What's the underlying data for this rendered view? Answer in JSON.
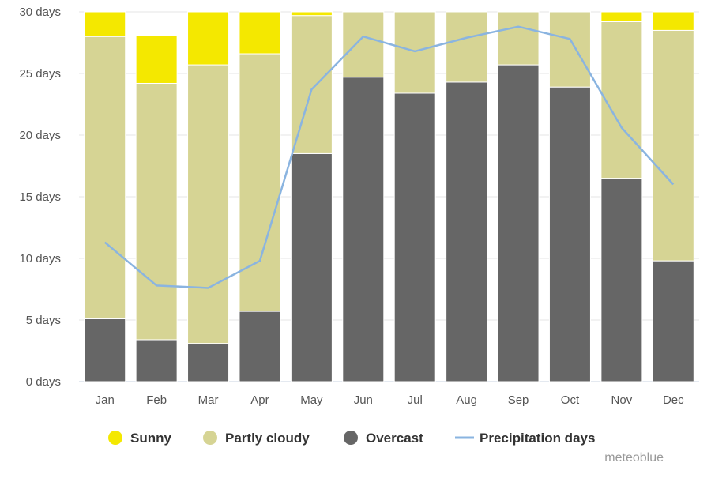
{
  "chart_data": {
    "type": "bar",
    "stacked": true,
    "categories": [
      "Jan",
      "Feb",
      "Mar",
      "Apr",
      "May",
      "Jun",
      "Jul",
      "Aug",
      "Sep",
      "Oct",
      "Nov",
      "Dec"
    ],
    "series": [
      {
        "name": "Overcast",
        "color": "#666666",
        "values": [
          5.1,
          3.4,
          3.1,
          5.7,
          18.5,
          24.7,
          23.4,
          24.3,
          25.7,
          23.9,
          16.5,
          9.8
        ]
      },
      {
        "name": "Partly cloudy",
        "color": "#d6d494",
        "values": [
          22.9,
          20.8,
          22.6,
          20.9,
          11.2,
          5.3,
          6.6,
          5.7,
          4.3,
          6.1,
          12.7,
          18.7
        ]
      },
      {
        "name": "Sunny",
        "color": "#f4e800",
        "values": [
          2.0,
          3.9,
          4.3,
          3.4,
          0.3,
          0.0,
          0.0,
          0.0,
          0.0,
          0.0,
          0.8,
          1.5
        ]
      }
    ],
    "line_series": {
      "name": "Precipitation days",
      "color": "#8ab4e0",
      "values": [
        11.3,
        7.8,
        7.6,
        9.8,
        23.7,
        28.0,
        26.8,
        27.9,
        28.8,
        27.8,
        20.6,
        16.0
      ]
    },
    "y_ticks": [
      "0 days",
      "5 days",
      "10 days",
      "15 days",
      "20 days",
      "25 days",
      "30 days"
    ],
    "ylim": [
      0,
      30
    ],
    "y_step": 5,
    "grid": true,
    "legend_position": "bottom"
  },
  "legend": [
    {
      "label": "Sunny",
      "color": "#f4e800",
      "shape": "circle"
    },
    {
      "label": "Partly cloudy",
      "color": "#d6d494",
      "shape": "circle"
    },
    {
      "label": "Overcast",
      "color": "#666666",
      "shape": "circle"
    },
    {
      "label": "Precipitation days",
      "color": "#8ab4e0",
      "shape": "line"
    }
  ],
  "credit": "meteoblue"
}
